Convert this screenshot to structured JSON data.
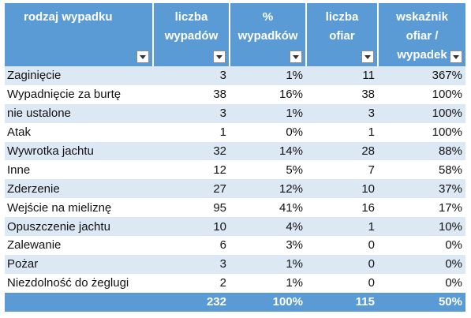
{
  "headers": [
    {
      "label_line1": "rodzaj wypadku",
      "label_line2": ""
    },
    {
      "label_line1": "liczba",
      "label_line2": "wypadów"
    },
    {
      "label_line1": "%",
      "label_line2": "wypadków"
    },
    {
      "label_line1": "liczba ofiar",
      "label_line2": ""
    },
    {
      "label_line1": "wskaźnik",
      "label_line2": "ofiar /",
      "label_line3": "wypadek"
    }
  ],
  "rows": [
    {
      "name": "Zaginięcie",
      "count": "3",
      "pct": "1%",
      "victims": "11",
      "rate": "367%"
    },
    {
      "name": "Wypadnięcie za burtę",
      "count": "38",
      "pct": "16%",
      "victims": "38",
      "rate": "100%"
    },
    {
      "name": "nie ustalone",
      "count": "3",
      "pct": "1%",
      "victims": "3",
      "rate": "100%"
    },
    {
      "name": "Atak",
      "count": "1",
      "pct": "0%",
      "victims": "1",
      "rate": "100%"
    },
    {
      "name": "Wywrotka jachtu",
      "count": "32",
      "pct": "14%",
      "victims": "28",
      "rate": "88%"
    },
    {
      "name": "Inne",
      "count": "12",
      "pct": "5%",
      "victims": "7",
      "rate": "58%"
    },
    {
      "name": "Zderzenie",
      "count": "27",
      "pct": "12%",
      "victims": "10",
      "rate": "37%"
    },
    {
      "name": "Wejście na mieliznę",
      "count": "95",
      "pct": "41%",
      "victims": "16",
      "rate": "17%"
    },
    {
      "name": "Opuszczenie jachtu",
      "count": "10",
      "pct": "4%",
      "victims": "1",
      "rate": "10%"
    },
    {
      "name": "Zalewanie",
      "count": "6",
      "pct": "3%",
      "victims": "0",
      "rate": "0%"
    },
    {
      "name": "Pożar",
      "count": "3",
      "pct": "1%",
      "victims": "0",
      "rate": "0%"
    },
    {
      "name": "Niezdolność do żeglugi",
      "count": "2",
      "pct": "1%",
      "victims": "0",
      "rate": "0%"
    }
  ],
  "totals": {
    "name": "",
    "count": "232",
    "pct": "100%",
    "victims": "115",
    "rate": "50%"
  },
  "colors": {
    "header": "#5b9bd5",
    "band": "#dde8f5",
    "header_text": "#ffffff"
  }
}
